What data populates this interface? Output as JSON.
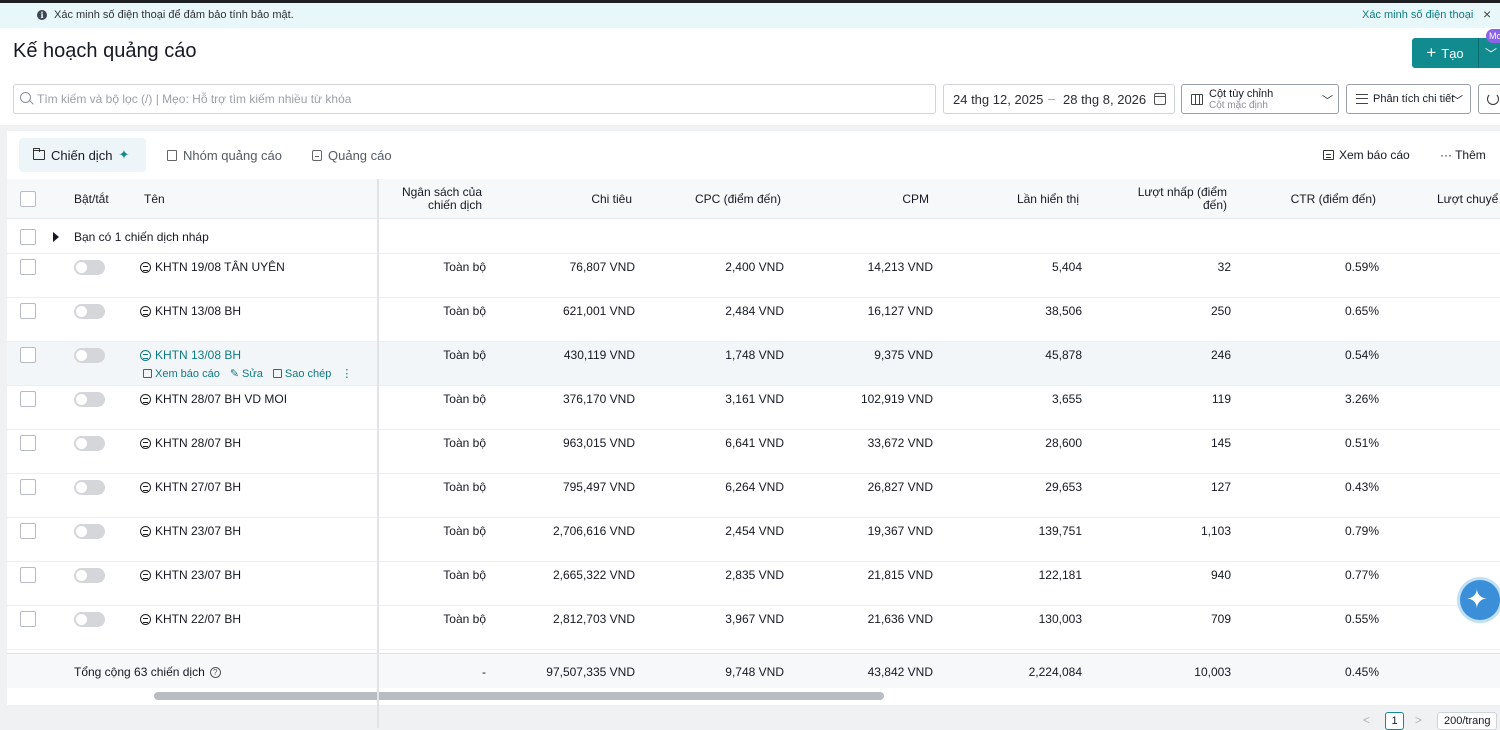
{
  "banner": {
    "message": "Xác minh số điện thoại để đảm bảo tính bảo mật.",
    "link": "Xác minh số điện thoại",
    "close": "×"
  },
  "header": {
    "title": "Kế hoạch quảng cáo",
    "create_label": "Tạo",
    "badge": "Mo"
  },
  "toolbar": {
    "search_placeholder": "Tìm kiếm và bộ lọc (/) | Mẹo: Hỗ trợ tìm kiếm nhiều từ khóa",
    "date_start": "24 thg 12, 2025",
    "date_sep": "–",
    "date_end": "28 thg 8, 2026",
    "columns_title": "Cột tùy chỉnh",
    "columns_sub": "Cột mặc định",
    "breakdown_label": "Phân tích chi tiết"
  },
  "tabs": [
    {
      "label": "Chiến dịch",
      "active": true
    },
    {
      "label": "Nhóm quảng cáo",
      "active": false
    },
    {
      "label": "Quảng cáo",
      "active": false
    }
  ],
  "tab_actions": {
    "report": "Xem báo cáo",
    "more": "··· Thêm"
  },
  "table": {
    "headers": {
      "toggle": "Bật/tắt",
      "name": "Tên",
      "budget": "Ngân sách của chiến dịch",
      "spend": "Chi tiêu",
      "cpc": "CPC (điểm đến)",
      "cpm": "CPM",
      "impressions": "Lần hiển thị",
      "clicks": "Lượt nhấp (điểm đến)",
      "ctr": "CTR (điểm đến)",
      "conversions": "Lượt chuyể"
    },
    "draft_notice": "Bạn có 1 chiến dịch nháp",
    "row_actions": {
      "report": "Xem báo cáo",
      "edit": "Sửa",
      "copy": "Sao chép",
      "more": "⋮"
    },
    "rows": [
      {
        "name": "KHTN 19/08 TÂN UYÊN",
        "budget": "Toàn bộ",
        "spend": "76,807 VND",
        "cpc": "2,400 VND",
        "cpm": "14,213 VND",
        "impressions": "5,404",
        "clicks": "32",
        "ctr": "0.59%"
      },
      {
        "name": "KHTN 13/08 BH",
        "budget": "Toàn bộ",
        "spend": "621,001 VND",
        "cpc": "2,484 VND",
        "cpm": "16,127 VND",
        "impressions": "38,506",
        "clicks": "250",
        "ctr": "0.65%"
      },
      {
        "name": "KHTN 13/08 BH",
        "budget": "Toàn bộ",
        "spend": "430,119 VND",
        "cpc": "1,748 VND",
        "cpm": "9,375 VND",
        "impressions": "45,878",
        "clicks": "246",
        "ctr": "0.54%"
      },
      {
        "name": "KHTN 28/07 BH VD MOI",
        "budget": "Toàn bộ",
        "spend": "376,170 VND",
        "cpc": "3,161 VND",
        "cpm": "102,919 VND",
        "impressions": "3,655",
        "clicks": "119",
        "ctr": "3.26%"
      },
      {
        "name": "KHTN 28/07 BH",
        "budget": "Toàn bộ",
        "spend": "963,015 VND",
        "cpc": "6,641 VND",
        "cpm": "33,672 VND",
        "impressions": "28,600",
        "clicks": "145",
        "ctr": "0.51%"
      },
      {
        "name": "KHTN 27/07 BH",
        "budget": "Toàn bộ",
        "spend": "795,497 VND",
        "cpc": "6,264 VND",
        "cpm": "26,827 VND",
        "impressions": "29,653",
        "clicks": "127",
        "ctr": "0.43%"
      },
      {
        "name": "KHTN 23/07 BH",
        "budget": "Toàn bộ",
        "spend": "2,706,616 VND",
        "cpc": "2,454 VND",
        "cpm": "19,367 VND",
        "impressions": "139,751",
        "clicks": "1,103",
        "ctr": "0.79%"
      },
      {
        "name": "KHTN 23/07 BH",
        "budget": "Toàn bộ",
        "spend": "2,665,322 VND",
        "cpc": "2,835 VND",
        "cpm": "21,815 VND",
        "impressions": "122,181",
        "clicks": "940",
        "ctr": "0.77%"
      },
      {
        "name": "KHTN 22/07 BH",
        "budget": "Toàn bộ",
        "spend": "2,812,703 VND",
        "cpc": "3,967 VND",
        "cpm": "21,636 VND",
        "impressions": "130,003",
        "clicks": "709",
        "ctr": "0.55%"
      }
    ],
    "totals": {
      "label": "Tổng cộng 63 chiến dịch",
      "budget": "-",
      "spend": "97,507,335 VND",
      "cpc": "9,748 VND",
      "cpm": "43,842 VND",
      "impressions": "2,224,084",
      "clicks": "10,003",
      "ctr": "0.45%"
    }
  },
  "pagination": {
    "prev": "<",
    "page": "1",
    "next": ">",
    "page_size": "200/trang"
  },
  "colors": {
    "accent": "#128b8f",
    "banner_bg": "#e8f8fa",
    "link": "#0f7a83"
  }
}
